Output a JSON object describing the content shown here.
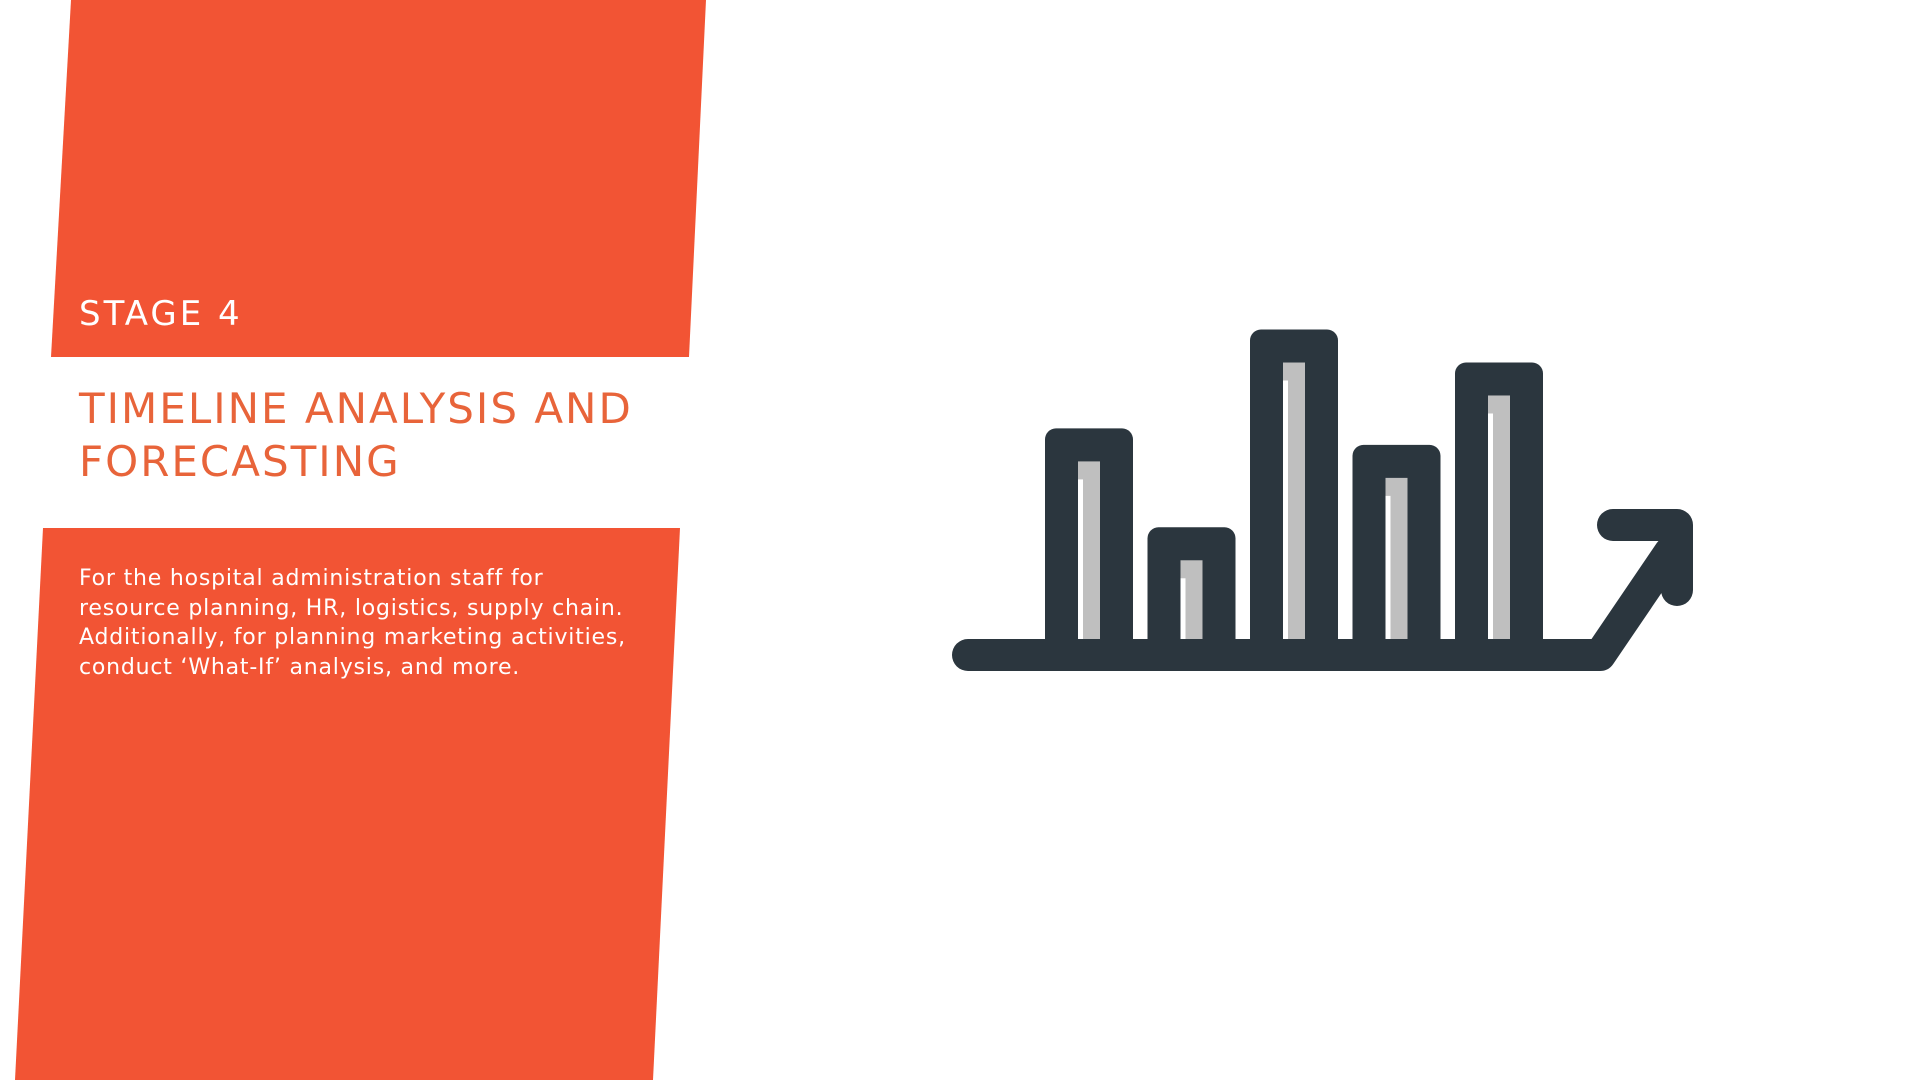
{
  "slide": {
    "stage_label": "STAGE 4",
    "title_lines": [
      "TIMELINE ANALYSIS AND",
      "FORECASTING"
    ],
    "body_lines": [
      "For the hospital administration staff for",
      "resource planning, HR, logistics, supply chain.",
      "Additionally, for planning marketing activities,",
      "conduct ‘What-If’ analysis, and more."
    ]
  },
  "illustration": {
    "icon": "bar-chart-growth-icon",
    "bars": [
      0.55,
      0.31,
      0.79,
      0.51,
      0.71
    ]
  },
  "colors": {
    "accent": "#F25434",
    "title": "#E8643A",
    "background": "#FFFFFF",
    "icon_dark": "#2B363E",
    "icon_fill": "#BFBFBF"
  }
}
